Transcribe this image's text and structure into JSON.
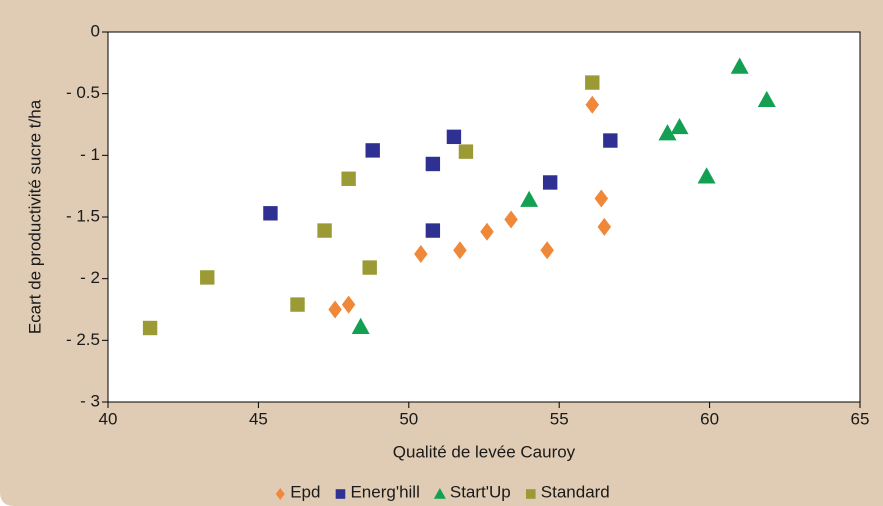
{
  "chart_data": {
    "type": "scatter",
    "x_label": "Qualité de levée Cauroy",
    "y_label": "Ecart de productivité sucre t/ha",
    "xlim": [
      40,
      65
    ],
    "xticks": [
      40,
      45,
      50,
      55,
      60,
      65
    ],
    "ylim": [
      -3,
      0
    ],
    "yticks": [
      0,
      {
        "value": -0.5,
        "label": "- 0.5"
      },
      {
        "value": -1,
        "label": "- 1"
      },
      {
        "value": -1.5,
        "label": "- 1.5"
      },
      {
        "value": -2,
        "label": "- 2"
      },
      {
        "value": -2.5,
        "label": "- 2.5"
      },
      {
        "value": -3,
        "label": "- 3"
      }
    ],
    "legend": "bottom",
    "series": [
      {
        "name": "Epd",
        "color": "#f0883a",
        "marker": "diamond",
        "x": [
          47.55,
          48.0,
          50.4,
          51.7,
          52.6,
          53.4,
          54.6,
          56.1,
          56.4,
          56.5
        ],
        "values": [
          -2.25,
          -2.21,
          -1.8,
          -1.77,
          -1.62,
          -1.52,
          -1.77,
          -0.59,
          -1.35,
          -1.58
        ]
      },
      {
        "name": "Energ'hill",
        "color": "#2e3192",
        "marker": "square",
        "x": [
          45.4,
          48.8,
          50.8,
          50.8,
          51.5,
          54.7,
          56.7
        ],
        "values": [
          -1.47,
          -0.96,
          -1.07,
          -1.61,
          -0.85,
          -1.22,
          -0.88
        ]
      },
      {
        "name": "Start'Up",
        "color": "#13a052",
        "marker": "triangle",
        "x": [
          48.4,
          54.0,
          58.6,
          59.0,
          59.9,
          61.0,
          61.9
        ],
        "values": [
          -2.39,
          -1.36,
          -0.82,
          -0.77,
          -1.17,
          -0.28,
          -0.55
        ]
      },
      {
        "name": "Standard",
        "color": "#9b9a35",
        "marker": "square",
        "x": [
          41.4,
          43.3,
          46.3,
          47.2,
          48.0,
          48.7,
          51.9,
          56.1
        ],
        "values": [
          -2.4,
          -1.99,
          -2.21,
          -1.61,
          -1.19,
          -1.91,
          -0.97,
          -0.41
        ]
      }
    ]
  }
}
